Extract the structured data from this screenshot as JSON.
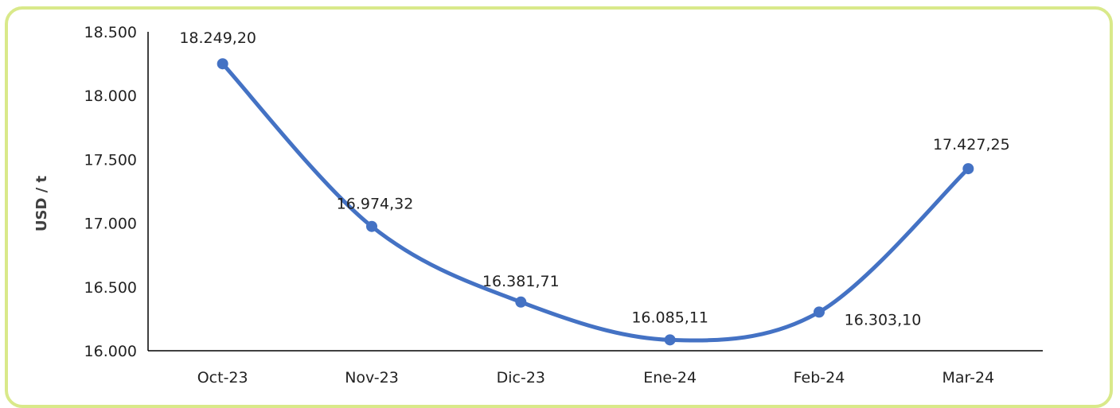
{
  "chart_data": {
    "type": "line",
    "smooth": true,
    "categories": [
      "Oct-23",
      "Nov-23",
      "Dic-23",
      "Ene-24",
      "Feb-24",
      "Mar-24"
    ],
    "values": [
      18249.2,
      16974.32,
      16381.71,
      16085.11,
      16303.1,
      17427.25
    ],
    "data_labels": [
      "18.249,20",
      "16.974,32",
      "16.381,71",
      "16.085,11",
      "16.303,10",
      "17.427,25"
    ],
    "ylabel": "USD / t",
    "ylim": [
      16000,
      18500
    ],
    "yticks": [
      16000,
      16500,
      17000,
      17500,
      18000,
      18500
    ],
    "ytick_labels": [
      "16.000",
      "16.500",
      "17.000",
      "17.500",
      "18.000",
      "18.500"
    ],
    "grid": false,
    "series_color": "#4472c4",
    "frame_color": "#d9e98a"
  }
}
